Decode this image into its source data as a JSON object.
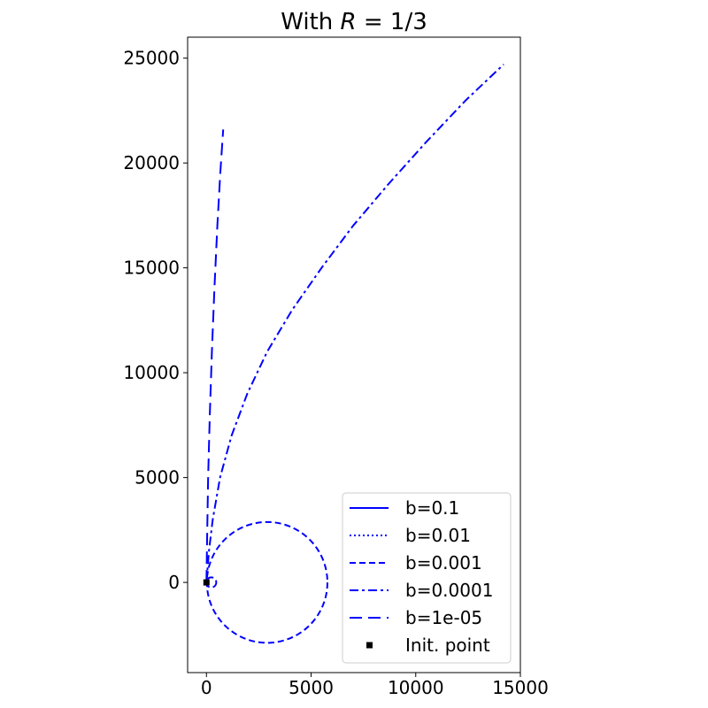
{
  "chart_data": {
    "type": "line",
    "title_prefix": "With ",
    "title_math": "R",
    "title_suffix": " = 1/3",
    "xlabel": "",
    "ylabel": "",
    "xlim": [
      -900,
      15000
    ],
    "ylim": [
      -4300,
      26000
    ],
    "xticks": [
      0,
      5000,
      10000,
      15000
    ],
    "yticks": [
      0,
      5000,
      10000,
      15000,
      20000,
      25000
    ],
    "legend_position": "lower-right",
    "grid": false,
    "color": "#0000ff",
    "series": [
      {
        "name": "b=0.1",
        "style": "solid",
        "points": [
          [
            0,
            0
          ],
          [
            1,
            1
          ],
          [
            0,
            2
          ],
          [
            -1,
            1
          ],
          [
            0,
            0
          ]
        ]
      },
      {
        "name": "b=0.01",
        "style": "dotted",
        "points": [
          [
            0,
            0
          ],
          [
            28,
            28
          ],
          [
            0,
            56
          ],
          [
            -28,
            28
          ],
          [
            0,
            0
          ]
        ]
      },
      {
        "name": "b=0.001",
        "style": "dashed",
        "center": [
          2900,
          0
        ],
        "radius": 2880,
        "inner_center": [
          230,
          0
        ],
        "inner_radius": 240
      },
      {
        "name": "b=0.0001",
        "style": "dashdot",
        "points": [
          [
            0,
            0
          ],
          [
            120,
            1500
          ],
          [
            300,
            3000
          ],
          [
            650,
            5000
          ],
          [
            1200,
            7000
          ],
          [
            1950,
            9000
          ],
          [
            2900,
            11000
          ],
          [
            4100,
            13000
          ],
          [
            5500,
            15000
          ],
          [
            7000,
            17000
          ],
          [
            8700,
            19000
          ],
          [
            10500,
            21000
          ],
          [
            12400,
            23000
          ],
          [
            14200,
            24700
          ]
        ]
      },
      {
        "name": "b=1e-05",
        "style": "longdash",
        "points": [
          [
            0,
            0
          ],
          [
            30,
            2000
          ],
          [
            80,
            5000
          ],
          [
            160,
            8000
          ],
          [
            260,
            11000
          ],
          [
            380,
            14000
          ],
          [
            520,
            17000
          ],
          [
            660,
            19500
          ],
          [
            800,
            21600
          ]
        ]
      }
    ],
    "init_point": {
      "name": "Init. point",
      "x": 0,
      "y": 0,
      "color": "#000000"
    }
  }
}
